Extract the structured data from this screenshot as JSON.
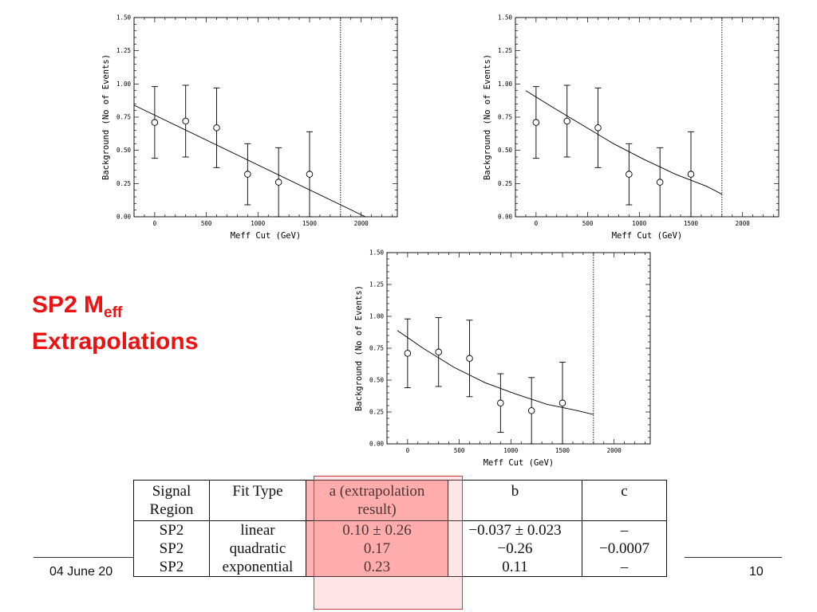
{
  "slide": {
    "title_main": "SP2 M",
    "title_sub": "eff",
    "title_line2": "Extrapolations",
    "footer_date": "04 June 20",
    "page_number": "10"
  },
  "chart_data": [
    {
      "type": "scatter",
      "fit": "linear",
      "xlabel": "Meff Cut (GeV)",
      "ylabel": "Background (No of Events)",
      "xlim": [
        -200,
        2350
      ],
      "ylim": [
        0,
        1.5
      ],
      "xticks": [
        0,
        500,
        1000,
        1500,
        2000
      ],
      "yticks": [
        0.0,
        0.25,
        0.5,
        0.75,
        1.0,
        1.25,
        1.5
      ],
      "points": [
        {
          "x": 0,
          "y": 0.71,
          "lo": 0.44,
          "hi": 0.98
        },
        {
          "x": 300,
          "y": 0.72,
          "lo": 0.45,
          "hi": 0.99
        },
        {
          "x": 600,
          "y": 0.67,
          "lo": 0.37,
          "hi": 0.97
        },
        {
          "x": 900,
          "y": 0.32,
          "lo": 0.09,
          "hi": 0.55
        },
        {
          "x": 1200,
          "y": 0.26,
          "lo": 0.0,
          "hi": 0.52
        },
        {
          "x": 1500,
          "y": 0.32,
          "lo": 0.0,
          "hi": 0.64
        }
      ],
      "fit_curve": [
        [
          -200,
          0.84
        ],
        [
          2040,
          0.0
        ]
      ],
      "cut_line_x": 1800
    },
    {
      "type": "scatter",
      "fit": "quadratic",
      "xlabel": "Meff Cut (GeV)",
      "ylabel": "Background (No of Events)",
      "xlim": [
        -200,
        2350
      ],
      "ylim": [
        0,
        1.5
      ],
      "xticks": [
        0,
        500,
        1000,
        1500,
        2000
      ],
      "yticks": [
        0.0,
        0.25,
        0.5,
        0.75,
        1.0,
        1.25,
        1.5
      ],
      "points": [
        {
          "x": 0,
          "y": 0.71,
          "lo": 0.44,
          "hi": 0.98
        },
        {
          "x": 300,
          "y": 0.72,
          "lo": 0.45,
          "hi": 0.99
        },
        {
          "x": 600,
          "y": 0.67,
          "lo": 0.37,
          "hi": 0.97
        },
        {
          "x": 900,
          "y": 0.32,
          "lo": 0.09,
          "hi": 0.55
        },
        {
          "x": 1200,
          "y": 0.26,
          "lo": 0.0,
          "hi": 0.52
        },
        {
          "x": 1500,
          "y": 0.32,
          "lo": 0.0,
          "hi": 0.64
        }
      ],
      "fit_curve": [
        [
          -100,
          0.95
        ],
        [
          150,
          0.83
        ],
        [
          450,
          0.69
        ],
        [
          750,
          0.55
        ],
        [
          1050,
          0.43
        ],
        [
          1350,
          0.32
        ],
        [
          1650,
          0.23
        ],
        [
          1800,
          0.17
        ]
      ],
      "cut_line_x": 1800
    },
    {
      "type": "scatter",
      "fit": "exponential",
      "xlabel": "Meff Cut (GeV)",
      "ylabel": "Background (No of Events)",
      "xlim": [
        -200,
        2350
      ],
      "ylim": [
        0,
        1.5
      ],
      "xticks": [
        0,
        500,
        1000,
        1500,
        2000
      ],
      "yticks": [
        0.0,
        0.25,
        0.5,
        0.75,
        1.0,
        1.25,
        1.5
      ],
      "points": [
        {
          "x": 0,
          "y": 0.71,
          "lo": 0.44,
          "hi": 0.98
        },
        {
          "x": 300,
          "y": 0.72,
          "lo": 0.45,
          "hi": 0.99
        },
        {
          "x": 600,
          "y": 0.67,
          "lo": 0.37,
          "hi": 0.97
        },
        {
          "x": 900,
          "y": 0.32,
          "lo": 0.09,
          "hi": 0.55
        },
        {
          "x": 1200,
          "y": 0.26,
          "lo": 0.0,
          "hi": 0.52
        },
        {
          "x": 1500,
          "y": 0.32,
          "lo": 0.0,
          "hi": 0.64
        }
      ],
      "fit_curve": [
        [
          -100,
          0.89
        ],
        [
          150,
          0.75
        ],
        [
          450,
          0.6
        ],
        [
          750,
          0.48
        ],
        [
          1050,
          0.39
        ],
        [
          1350,
          0.31
        ],
        [
          1650,
          0.26
        ],
        [
          1800,
          0.23
        ]
      ],
      "cut_line_x": 1800
    }
  ],
  "table": {
    "headers": [
      {
        "line1": "Signal",
        "line2": "Region"
      },
      {
        "line1": "Fit Type",
        "line2": ""
      },
      {
        "line1": "a (extrapolation",
        "line2": "result)"
      },
      {
        "line1": "b",
        "line2": ""
      },
      {
        "line1": "c",
        "line2": ""
      }
    ],
    "rows": [
      [
        "SP2",
        "linear",
        "0.10 ± 0.26",
        "−0.037 ± 0.023",
        "–"
      ],
      [
        "SP2",
        "quadratic",
        "0.17",
        "−0.26",
        "−0.0007"
      ],
      [
        "SP2",
        "exponential",
        "0.23",
        "0.11",
        "–"
      ]
    ]
  }
}
